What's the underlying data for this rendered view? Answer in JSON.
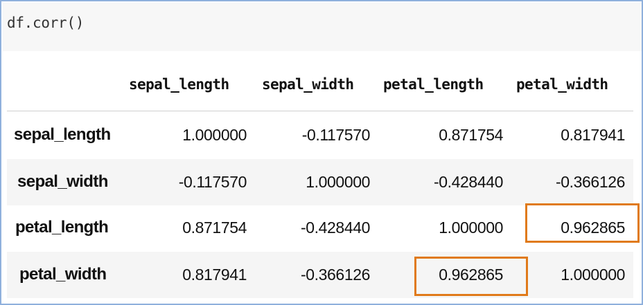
{
  "code": {
    "input": "df.corr()"
  },
  "table": {
    "columns": [
      "sepal_length",
      "sepal_width",
      "petal_length",
      "petal_width"
    ],
    "rows": [
      {
        "label": "sepal_length",
        "values": [
          "1.000000",
          "-0.117570",
          "0.871754",
          "0.817941"
        ]
      },
      {
        "label": "sepal_width",
        "values": [
          "-0.117570",
          "1.000000",
          "-0.428440",
          "-0.366126"
        ]
      },
      {
        "label": "petal_length",
        "values": [
          "0.871754",
          "-0.428440",
          "1.000000",
          "0.962865"
        ]
      },
      {
        "label": "petal_width",
        "values": [
          "0.817941",
          "-0.366126",
          "0.962865",
          "1.000000"
        ]
      }
    ]
  },
  "highlight": {
    "color": "#e07a1a"
  }
}
